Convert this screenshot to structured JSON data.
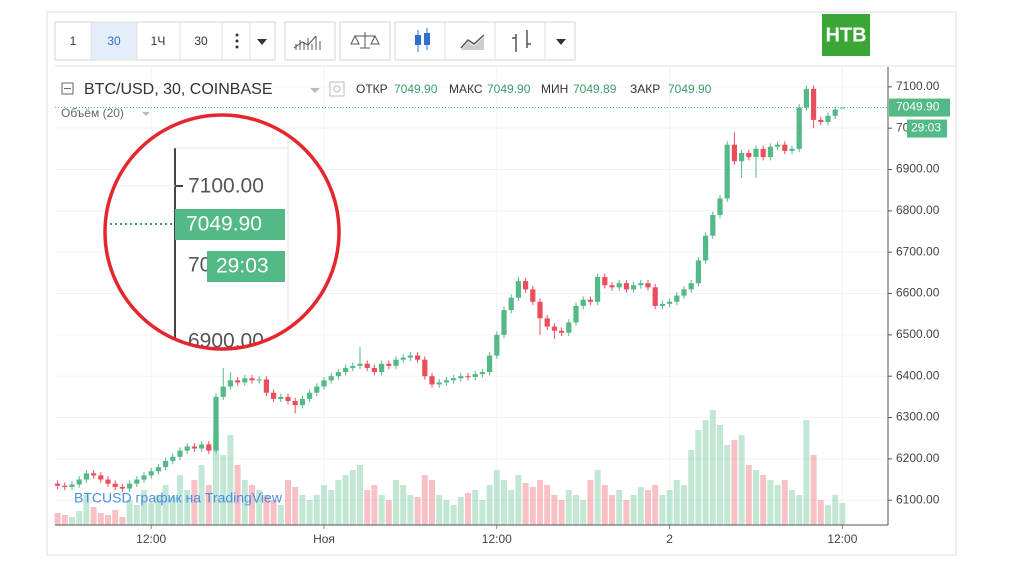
{
  "toolbar": {
    "intervals": [
      "1",
      "30",
      "1Ч",
      "30"
    ]
  },
  "logo": "НТВ",
  "chart_data": {
    "type": "candlestick",
    "symbol": "BTC/USD, 30, COINBASE",
    "legend_bar": {
      "open_label": "ОТКР",
      "open": "7049.90",
      "high_label": "МАКС",
      "high": "7049.90",
      "low_label": "МИН",
      "low": "7049.89",
      "close_label": "ЗАКР",
      "close": "7049.90"
    },
    "volume_label": "Объём (20)",
    "watermark": "BTCUSD график на TradingView",
    "last_price": {
      "value": 7049.9,
      "label": "7049.90"
    },
    "countdown": "29:03",
    "up_color": "#53b987",
    "down_color": "#eb4d5c",
    "ylim": [
      6040,
      7148
    ],
    "yticks": [
      {
        "value": 6100,
        "label": "6100.00"
      },
      {
        "value": 6200,
        "label": "6200.00"
      },
      {
        "value": 6300,
        "label": "6300.00"
      },
      {
        "value": 6400,
        "label": "6400.00"
      },
      {
        "value": 6500,
        "label": "6500.00"
      },
      {
        "value": 6600,
        "label": "6600.00"
      },
      {
        "value": 6700,
        "label": "6700.00"
      },
      {
        "value": 6800,
        "label": "6800.00"
      },
      {
        "value": 6900,
        "label": "6900.00"
      },
      {
        "value": 7000,
        "label": "7000.00"
      },
      {
        "value": 7100,
        "label": "7100.00"
      }
    ],
    "grid": true,
    "categories": [
      null,
      null,
      null,
      null,
      null,
      null,
      null,
      null,
      null,
      null,
      null,
      null,
      null,
      "12:00",
      null,
      null,
      null,
      null,
      null,
      null,
      null,
      null,
      null,
      null,
      null,
      null,
      null,
      null,
      null,
      null,
      null,
      null,
      null,
      null,
      null,
      null,
      null,
      "Ноя",
      null,
      null,
      null,
      null,
      null,
      null,
      null,
      null,
      null,
      null,
      null,
      null,
      null,
      null,
      null,
      null,
      null,
      null,
      null,
      null,
      null,
      null,
      null,
      "12:00",
      null,
      null,
      null,
      null,
      null,
      null,
      null,
      null,
      null,
      null,
      null,
      null,
      null,
      null,
      null,
      null,
      null,
      null,
      null,
      null,
      null,
      null,
      null,
      "2",
      null,
      null,
      null,
      null,
      null,
      null,
      null,
      null,
      null,
      null,
      null,
      null,
      null,
      null,
      null,
      null,
      null,
      null,
      null,
      null,
      null,
      null,
      null,
      "12:00"
    ],
    "open": [
      6140,
      6135,
      6132,
      6138,
      6150,
      6165,
      6160,
      6150,
      6140,
      6132,
      6128,
      6140,
      6150,
      6160,
      6170,
      6180,
      6195,
      6205,
      6220,
      6230,
      6225,
      6235,
      6220,
      6350,
      6375,
      6390,
      6385,
      6395,
      6390,
      6392,
      6360,
      6345,
      6350,
      6340,
      6330,
      6345,
      6360,
      6375,
      6390,
      6400,
      6410,
      6420,
      6425,
      6430,
      6420,
      6410,
      6430,
      6425,
      6440,
      6445,
      6450,
      6440,
      6400,
      6380,
      6385,
      6390,
      6395,
      6400,
      6398,
      6405,
      6410,
      6450,
      6500,
      6560,
      6590,
      6630,
      6610,
      6580,
      6540,
      6520,
      6510,
      6505,
      6530,
      6570,
      6585,
      6580,
      6640,
      6620,
      6615,
      6625,
      6610,
      6620,
      6625,
      6615,
      6570,
      6575,
      6580,
      6595,
      6610,
      6625,
      6680,
      6740,
      6790,
      6830,
      6960,
      6920,
      6940,
      6930,
      6950,
      6930,
      6955,
      6960,
      6945,
      6950,
      7050,
      7095,
      7020,
      7015,
      7030,
      7049.9
    ],
    "high": [
      6148,
      6143,
      6146,
      6158,
      6173,
      6173,
      6168,
      6158,
      6148,
      6140,
      6148,
      6158,
      6168,
      6178,
      6188,
      6203,
      6213,
      6228,
      6238,
      6238,
      6243,
      6243,
      6358,
      6420,
      6410,
      6398,
      6403,
      6403,
      6400,
      6400,
      6368,
      6358,
      6358,
      6348,
      6353,
      6368,
      6383,
      6398,
      6408,
      6418,
      6428,
      6433,
      6470,
      6438,
      6428,
      6438,
      6438,
      6448,
      6453,
      6458,
      6458,
      6448,
      6408,
      6393,
      6398,
      6403,
      6408,
      6408,
      6413,
      6418,
      6458,
      6508,
      6568,
      6598,
      6640,
      6638,
      6618,
      6588,
      6548,
      6528,
      6518,
      6538,
      6578,
      6593,
      6593,
      6648,
      6648,
      6628,
      6633,
      6633,
      6628,
      6633,
      6633,
      6623,
      6583,
      6588,
      6603,
      6618,
      6633,
      6688,
      6748,
      6798,
      6838,
      6968,
      6990,
      6948,
      6948,
      6958,
      6958,
      6963,
      6968,
      6968,
      6958,
      7058,
      7103,
      7103,
      7028,
      7038,
      7053,
      7049.9
    ],
    "low": [
      6127,
      6124,
      6124,
      6130,
      6142,
      6152,
      6142,
      6132,
      6124,
      6120,
      6120,
      6132,
      6142,
      6152,
      6162,
      6172,
      6187,
      6197,
      6212,
      6217,
      6217,
      6212,
      6212,
      6342,
      6367,
      6377,
      6377,
      6382,
      6382,
      6352,
      6337,
      6337,
      6332,
      6310,
      6322,
      6337,
      6352,
      6367,
      6382,
      6392,
      6402,
      6412,
      6417,
      6412,
      6402,
      6402,
      6417,
      6417,
      6432,
      6437,
      6432,
      6392,
      6372,
      6372,
      6377,
      6382,
      6387,
      6390,
      6390,
      6397,
      6402,
      6442,
      6492,
      6552,
      6582,
      6602,
      6572,
      6500,
      6512,
      6490,
      6497,
      6497,
      6522,
      6562,
      6572,
      6572,
      6612,
      6607,
      6607,
      6602,
      6602,
      6612,
      6607,
      6562,
      6562,
      6567,
      6572,
      6587,
      6602,
      6617,
      6672,
      6732,
      6782,
      6822,
      6912,
      6880,
      6922,
      6880,
      6922,
      6922,
      6947,
      6937,
      6937,
      6942,
      7042,
      7000,
      7007,
      7007,
      7022,
      7049.89
    ],
    "close": [
      6135,
      6132,
      6138,
      6150,
      6165,
      6160,
      6150,
      6140,
      6132,
      6128,
      6140,
      6150,
      6160,
      6170,
      6180,
      6195,
      6205,
      6220,
      6230,
      6225,
      6235,
      6220,
      6350,
      6375,
      6390,
      6385,
      6395,
      6390,
      6392,
      6360,
      6345,
      6350,
      6340,
      6330,
      6345,
      6360,
      6375,
      6390,
      6400,
      6410,
      6420,
      6425,
      6430,
      6420,
      6410,
      6430,
      6425,
      6440,
      6445,
      6450,
      6440,
      6400,
      6380,
      6385,
      6390,
      6395,
      6400,
      6398,
      6405,
      6410,
      6450,
      6500,
      6560,
      6590,
      6630,
      6610,
      6580,
      6540,
      6520,
      6510,
      6505,
      6530,
      6570,
      6585,
      6580,
      6640,
      6620,
      6615,
      6625,
      6610,
      6620,
      6625,
      6615,
      6570,
      6575,
      6580,
      6595,
      6610,
      6625,
      6680,
      6740,
      6790,
      6830,
      6960,
      6920,
      6940,
      6930,
      6950,
      6930,
      6955,
      6960,
      6945,
      6950,
      7050,
      7095,
      7020,
      7015,
      7030,
      7045,
      7049.9
    ],
    "volume": [
      12,
      10,
      8,
      14,
      30,
      18,
      12,
      10,
      15,
      8,
      25,
      20,
      35,
      22,
      30,
      40,
      28,
      50,
      35,
      45,
      60,
      40,
      95,
      70,
      90,
      60,
      45,
      40,
      35,
      30,
      25,
      20,
      45,
      38,
      30,
      25,
      30,
      40,
      35,
      45,
      50,
      55,
      60,
      35,
      40,
      30,
      25,
      45,
      40,
      30,
      28,
      50,
      45,
      30,
      25,
      20,
      28,
      32,
      35,
      25,
      40,
      55,
      45,
      35,
      50,
      42,
      38,
      45,
      40,
      30,
      25,
      35,
      30,
      25,
      45,
      55,
      40,
      30,
      35,
      25,
      30,
      38,
      35,
      40,
      30,
      35,
      45,
      40,
      75,
      95,
      105,
      115,
      100,
      80,
      85,
      90,
      60,
      55,
      50,
      45,
      40,
      45,
      35,
      30,
      105,
      70,
      25,
      20,
      30,
      22
    ]
  }
}
